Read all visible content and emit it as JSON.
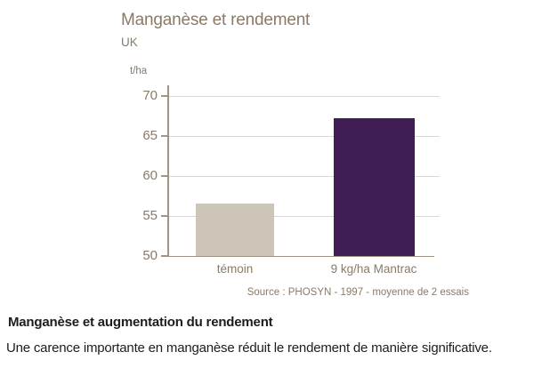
{
  "chart_data": {
    "type": "bar",
    "title": "Manganèse et rendement",
    "subtitle": "UK",
    "ylabel": "t/ha",
    "xlabel": "",
    "categories": [
      "témoin",
      "9 kg/ha Mantrac"
    ],
    "values": [
      56.6,
      67.2
    ],
    "ylim": [
      50,
      70
    ],
    "yticks": [
      50,
      55,
      60,
      65,
      70
    ],
    "grid": true,
    "legend": false,
    "bar_colors": [
      "#cec5b9",
      "#3f1d54"
    ],
    "source": "Source : PHOSYN - 1997 - moyenne de 2 essais"
  },
  "caption": {
    "title": "Manganèse et augmentation du rendement",
    "body": "Une carence importante en manganèse réduit le rendement de manière significative."
  },
  "colors": {
    "accent_text": "#8a7a68",
    "axis": "#a29382",
    "grid": "#dcd7d2",
    "body_text": "#1d1d1b"
  }
}
